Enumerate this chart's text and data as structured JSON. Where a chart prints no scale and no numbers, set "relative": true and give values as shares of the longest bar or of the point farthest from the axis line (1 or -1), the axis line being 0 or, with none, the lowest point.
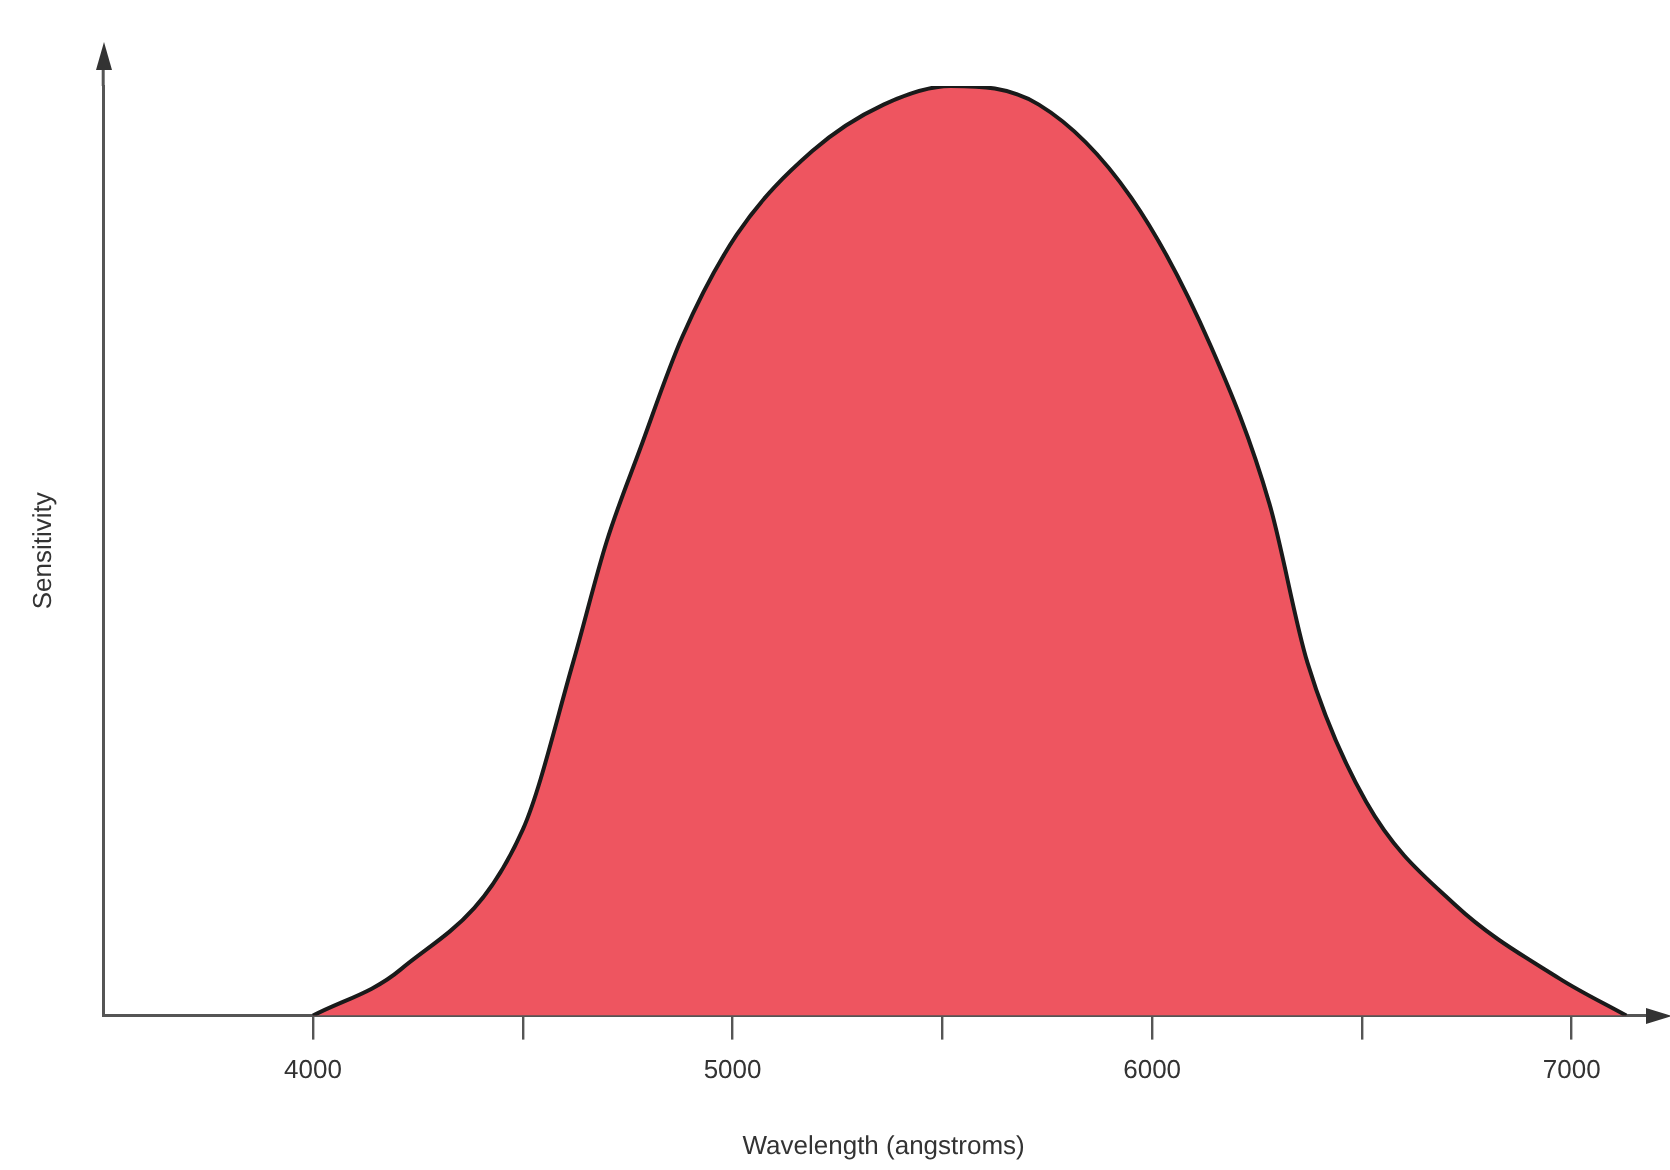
{
  "chart_data": {
    "type": "area",
    "xlabel": "Wavelength (angstroms)",
    "ylabel": "Sensitivity",
    "relative": true,
    "x": [
      4000,
      4210,
      4500,
      4620,
      4700,
      4780,
      4880,
      5010,
      5190,
      5360,
      5520,
      5730,
      5950,
      6140,
      6280,
      6370,
      6510,
      6720,
      6970,
      7130
    ],
    "xlim": [
      3500,
      7220
    ],
    "xticks": [
      4000,
      {
        "value": 4500,
        "label": null
      },
      5000,
      {
        "value": 5500,
        "label": null
      },
      6000,
      {
        "value": 6500,
        "label": null
      },
      7000
    ],
    "series": [
      {
        "color": "#ee5560",
        "values": [
          0,
          0.05,
          0.2,
          0.38,
          0.51,
          0.61,
          0.73,
          0.84,
          0.93,
          0.98,
          1,
          0.98,
          0.88,
          0.72,
          0.55,
          0.38,
          0.23,
          0.12,
          0.04,
          0
        ]
      }
    ],
    "grid": false,
    "legend": false
  }
}
